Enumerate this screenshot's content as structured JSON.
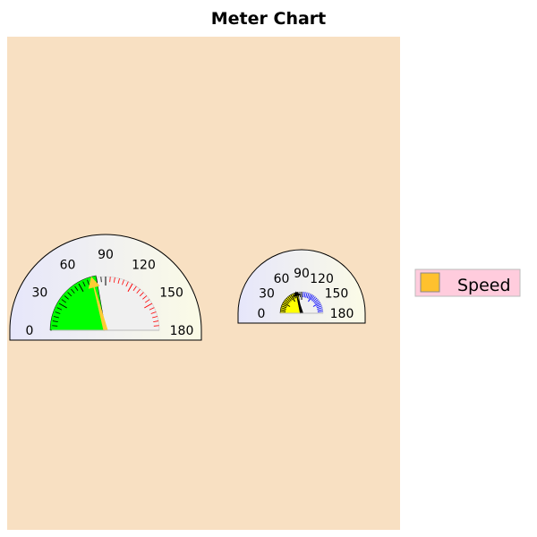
{
  "chart_data": {
    "type": "meter",
    "title": "Meter Chart",
    "range": [
      0,
      180
    ],
    "tick_labels": [
      "0",
      "30",
      "60",
      "90",
      "120",
      "150",
      "180"
    ],
    "legend": {
      "placement": "right",
      "entries": [
        {
          "label": "Speed",
          "color": "#ffc12e"
        }
      ]
    },
    "plot_background": "#f8e0c2",
    "dials": [
      {
        "value": 75,
        "band": [
          0,
          90
        ],
        "band_color": "#00ff00",
        "needle_color": "#ffcc33",
        "minor_tick_color_low": "#000000",
        "minor_tick_color_high": "#ff0000"
      },
      {
        "value": 75,
        "band": [
          0,
          90
        ],
        "band_color": "#ffff00",
        "needle_color": "#000000",
        "minor_tick_color_low": "#000000",
        "minor_tick_color_high": "#0000ff"
      }
    ]
  }
}
